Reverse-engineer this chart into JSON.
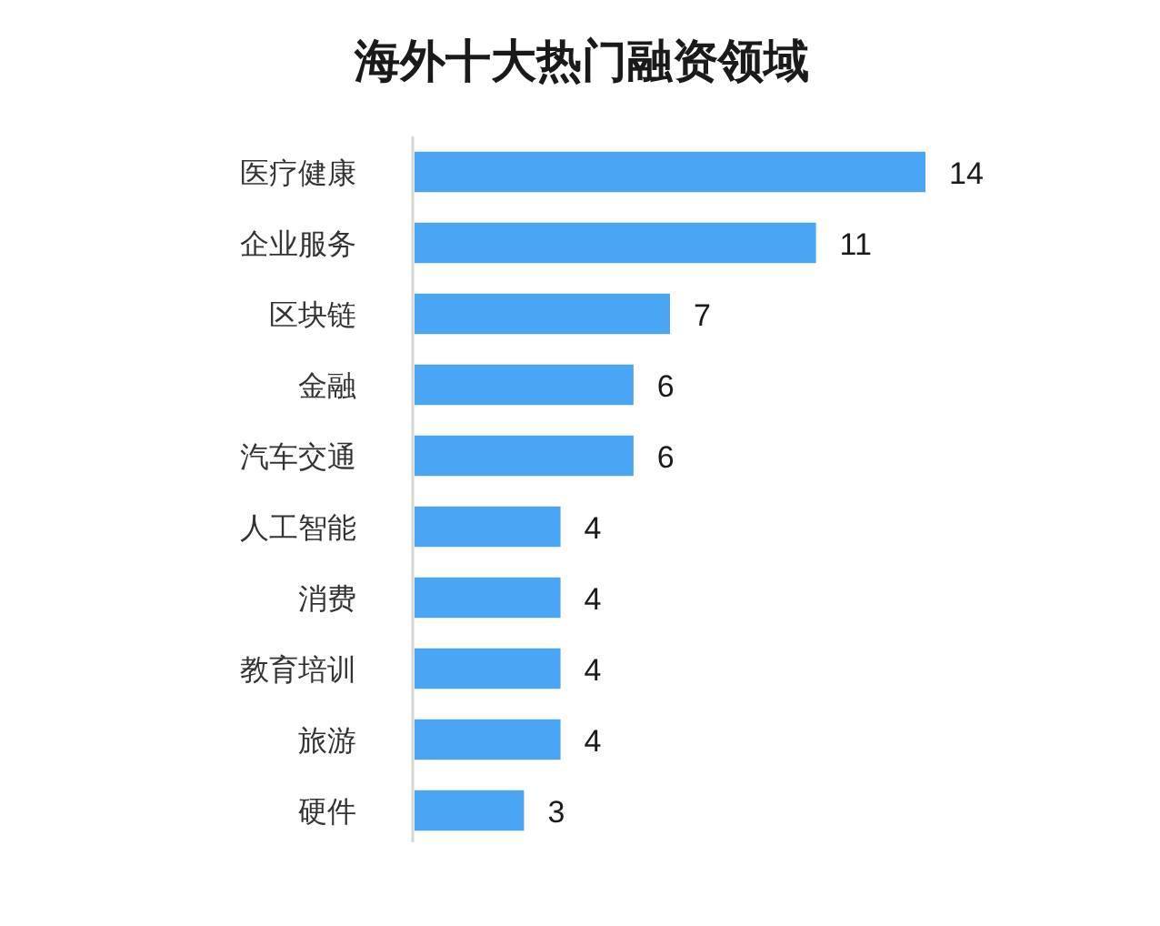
{
  "chart_data": {
    "type": "bar",
    "orientation": "horizontal",
    "title": "海外十大热门融资领域",
    "categories": [
      "医疗健康",
      "企业服务",
      "区块链",
      "金融",
      "汽车交通",
      "人工智能",
      "消费",
      "教育培训",
      "旅游",
      "硬件"
    ],
    "values": [
      14,
      11,
      7,
      6,
      6,
      4,
      4,
      4,
      4,
      3
    ],
    "color": "#4aa6f5",
    "data_labels": true
  }
}
